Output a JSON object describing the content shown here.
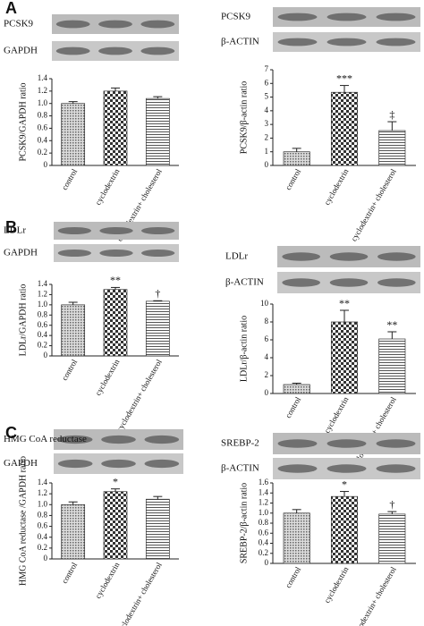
{
  "chart_data": [
    {
      "type": "bar",
      "panel": "A",
      "blots": [
        "PCSK9",
        "GAPDH"
      ],
      "ylabel": "PCSK9/GAPDH ratio",
      "categories": [
        "control",
        "cyclodextrin",
        "cyclodextrin+ cholesterol"
      ],
      "values": [
        1.0,
        1.2,
        1.08
      ],
      "errors": [
        0.03,
        0.05,
        0.03
      ],
      "annotations": [
        null,
        null,
        null
      ],
      "ylim": [
        0,
        1.4
      ],
      "yticks": [
        0,
        0.2,
        0.4,
        0.6,
        0.8,
        {
          "value": 1,
          "label": "1.0"
        },
        1.2,
        1.4
      ]
    },
    {
      "type": "bar",
      "blots": [
        "PCSK9",
        "β-ACTIN"
      ],
      "ylabel": "PCSK9/β-actin ratio",
      "categories": [
        "control",
        "cyclodextrin",
        "cyclodextrin+ cholesterol"
      ],
      "values": [
        1.0,
        5.35,
        2.55
      ],
      "errors": [
        0.25,
        0.5,
        0.65
      ],
      "annotations": [
        null,
        "***",
        "‡"
      ],
      "ylim": [
        0,
        7
      ],
      "yticks": [
        0,
        1,
        2,
        3,
        4,
        5,
        6,
        7
      ]
    },
    {
      "type": "bar",
      "panel": "B",
      "blots": [
        "LDLr",
        "GAPDH"
      ],
      "ylabel": "LDLr/GAPDH ratio",
      "categories": [
        "control",
        "cyclodextrin",
        "cyclodextrin+ cholesterol"
      ],
      "values": [
        1.0,
        1.3,
        1.07
      ],
      "errors": [
        0.05,
        0.04,
        0.01
      ],
      "annotations": [
        null,
        "**",
        "†"
      ],
      "ylim": [
        0,
        1.4
      ],
      "yticks": [
        0,
        0.2,
        0.4,
        0.6,
        0.8,
        {
          "value": 1,
          "label": "1.0"
        },
        1.2,
        1.4
      ]
    },
    {
      "type": "bar",
      "blots": [
        "LDLr",
        "β-ACTIN"
      ],
      "ylabel": "LDLr/β-actin ratio",
      "categories": [
        "control",
        "cyclodextrin",
        "cyclodextrin+ cholesterol"
      ],
      "values": [
        1.0,
        8.0,
        6.1
      ],
      "errors": [
        0.15,
        1.3,
        0.8
      ],
      "annotations": [
        null,
        "**",
        "**"
      ],
      "ylim": [
        0,
        10
      ],
      "yticks": [
        0,
        2,
        4,
        6,
        8,
        10
      ]
    },
    {
      "type": "bar",
      "panel": "C",
      "blots": [
        "HMG CoA reductase",
        "GAPDH"
      ],
      "ylabel": "HMG CoA reductase /GAPDH ratio",
      "categories": [
        "control",
        "cyclodextrin",
        "cyclodextrin+ cholesterol"
      ],
      "values": [
        1.0,
        1.24,
        1.1
      ],
      "errors": [
        0.05,
        0.05,
        0.05
      ],
      "annotations": [
        null,
        "*",
        null
      ],
      "ylim": [
        0,
        1.4
      ],
      "yticks": [
        0,
        0.2,
        0.4,
        0.6,
        0.8,
        {
          "value": 1,
          "label": "1.0"
        },
        1.2,
        1.4
      ]
    },
    {
      "type": "bar",
      "blots": [
        "SREBP-2",
        "β-ACTIN"
      ],
      "ylabel": "SREBP-2/β-actin ratio",
      "categories": [
        "control",
        "cyclodextrin",
        "cyclodextrin+ cholesterol"
      ],
      "values": [
        1.0,
        1.33,
        0.98
      ],
      "errors": [
        0.07,
        0.1,
        0.05
      ],
      "annotations": [
        null,
        "*",
        "†"
      ],
      "ylim": [
        0,
        1.6
      ],
      "yticks": [
        0,
        0.2,
        0.4,
        0.6,
        0.8,
        {
          "value": 1,
          "label": "1.0"
        },
        1.2,
        1.4,
        1.6
      ]
    }
  ]
}
